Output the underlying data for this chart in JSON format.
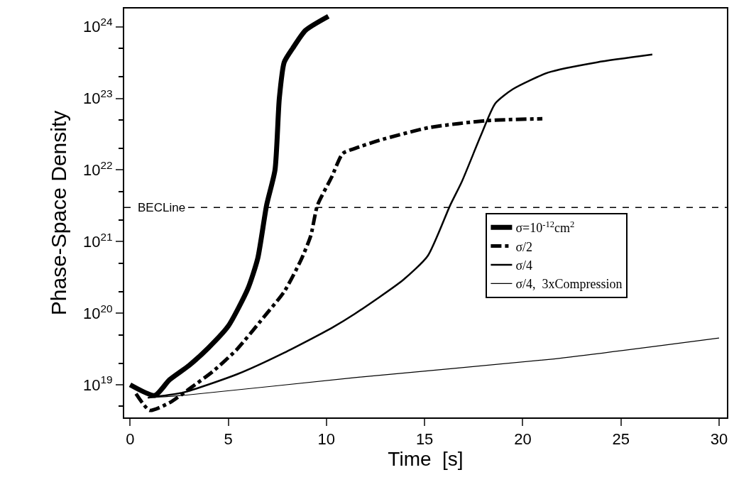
{
  "chart_data": {
    "type": "line",
    "xlabel": "Time  [s]",
    "ylabel": "Phase-Space Density",
    "xlim": [
      -0.3,
      30.4
    ],
    "xticks": [
      0,
      5,
      10,
      15,
      20,
      25,
      30
    ],
    "ylim": [
      3.5e+18,
      1.8e+24
    ],
    "log": "y",
    "yticks": [
      {
        "value": 1e+19,
        "label": "10$^{19}$"
      },
      {
        "value": 1e+20,
        "label": "10$^{20}$"
      },
      {
        "value": 1e+21,
        "label": "10$^{21}$"
      },
      {
        "value": 1e+22,
        "label": "10$^{22}$"
      },
      {
        "value": 1e+23,
        "label": "10$^{23}$"
      },
      {
        "value": 1e+24,
        "label": "10$^{24}$"
      }
    ],
    "grid": false,
    "legend": "right",
    "marker": "none",
    "ref_lines": [
      {
        "axis": "y",
        "value": 3e+21,
        "label": "BECLine",
        "line_style": "dashed",
        "color": "#000000"
      }
    ],
    "series": [
      {
        "name": "σ=10$^{-12}$cm$^{2}$",
        "color": "#000000",
        "line_style": "solid",
        "x": [
          0,
          1.26,
          2,
          3,
          4,
          5,
          6,
          6.5,
          6.95,
          7.38,
          7.6,
          7.85,
          8.28,
          8.93,
          10.1
        ],
        "values": [
          1e+19,
          7.1e+18,
          1.17e+19,
          1.86e+19,
          3.3e+19,
          6.6e+19,
          2.2e+20,
          5.8e+20,
          3.2e+21,
          1e+22,
          1e+23,
          3.2e+23,
          5e+23,
          8.9e+23,
          1.4e+24
        ]
      },
      {
        "name": "σ/2",
        "color": "#000000",
        "line_style": "dashed",
        "x": [
          0.3,
          1,
          2,
          3.05,
          4.23,
          5.43,
          6.65,
          7.85,
          8.7,
          9.2,
          9.54,
          10.26,
          10.83,
          11.45,
          12.7,
          15.2,
          18.2,
          21
        ],
        "values": [
          7.5e+18,
          4.4e+18,
          5.6e+18,
          8.9e+18,
          1.55e+19,
          3.1e+19,
          7.8e+19,
          2e+20,
          5.5e+20,
          1.2e+21,
          3.2e+21,
          7.9e+21,
          1.7e+22,
          2e+22,
          2.6e+22,
          3.9e+22,
          4.9e+22,
          5.2e+22
        ]
      },
      {
        "name": "σ/4",
        "color": "#000000",
        "line_style": "solid",
        "x": [
          0.9,
          2.7,
          5.44,
          7.85,
          10.26,
          11.45,
          13.9,
          15.16,
          16.3,
          16.9,
          17.86,
          18.6,
          19.5,
          21.3,
          23.8,
          26.6
        ],
        "values": [
          6.6e+18,
          7.8e+18,
          1.4e+19,
          2.8e+19,
          6.2e+19,
          9.8e+19,
          2.9e+20,
          6.3e+20,
          3.2e+21,
          6.9e+21,
          3e+22,
          8.5e+22,
          1.35e+23,
          2.3e+23,
          3.2e+23,
          4.1e+23
        ]
      },
      {
        "name": "σ/4,  3xCompression",
        "color": "#000000",
        "line_style": "solid",
        "x": [
          1,
          2.7,
          11.45,
          21.6,
          30
        ],
        "values": [
          6.6e+18,
          7.1e+18,
          1.26e+19,
          2.3e+19,
          4.5e+19
        ]
      }
    ]
  }
}
